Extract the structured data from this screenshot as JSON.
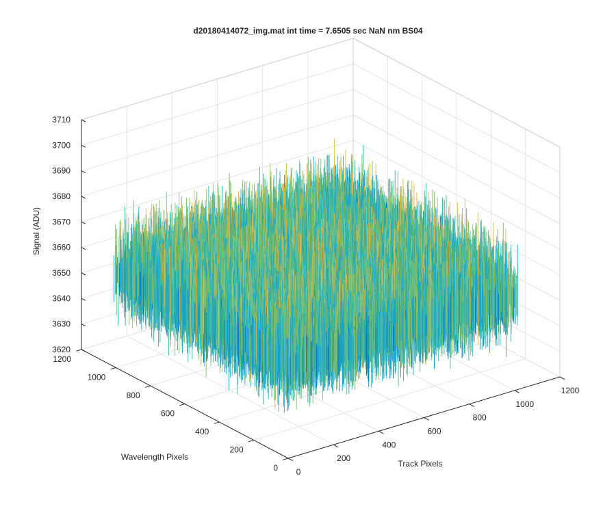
{
  "chart_data": {
    "type": "surface3d",
    "title": "d20180414072_img.mat int time = 7.6505 sec  NaN nm BS04",
    "xlabel": "Track Pixels",
    "ylabel": "Wavelength Pixels",
    "zlabel": "Signal (ADU)",
    "xlim": [
      0,
      1200
    ],
    "ylim": [
      0,
      1200
    ],
    "zlim": [
      3620,
      3710
    ],
    "xticks": [
      "0",
      "200",
      "400",
      "600",
      "800",
      "1000",
      "1200"
    ],
    "yticks": [
      "0",
      "200",
      "400",
      "600",
      "800",
      "1000",
      "1200"
    ],
    "zticks": [
      "3620",
      "3630",
      "3640",
      "3650",
      "3660",
      "3670",
      "3680",
      "3690",
      "3700",
      "3710"
    ],
    "data_extent": {
      "x": [
        0,
        1024
      ],
      "y": [
        0,
        1024
      ]
    },
    "signal_summary": {
      "mean": 3655,
      "min": 3620,
      "max": 3710
    },
    "grid": true,
    "colormap": [
      "#0072bd",
      "#1aa3c8",
      "#35b7a8",
      "#7fbf6a",
      "#d9b84a",
      "#edc32f"
    ]
  }
}
